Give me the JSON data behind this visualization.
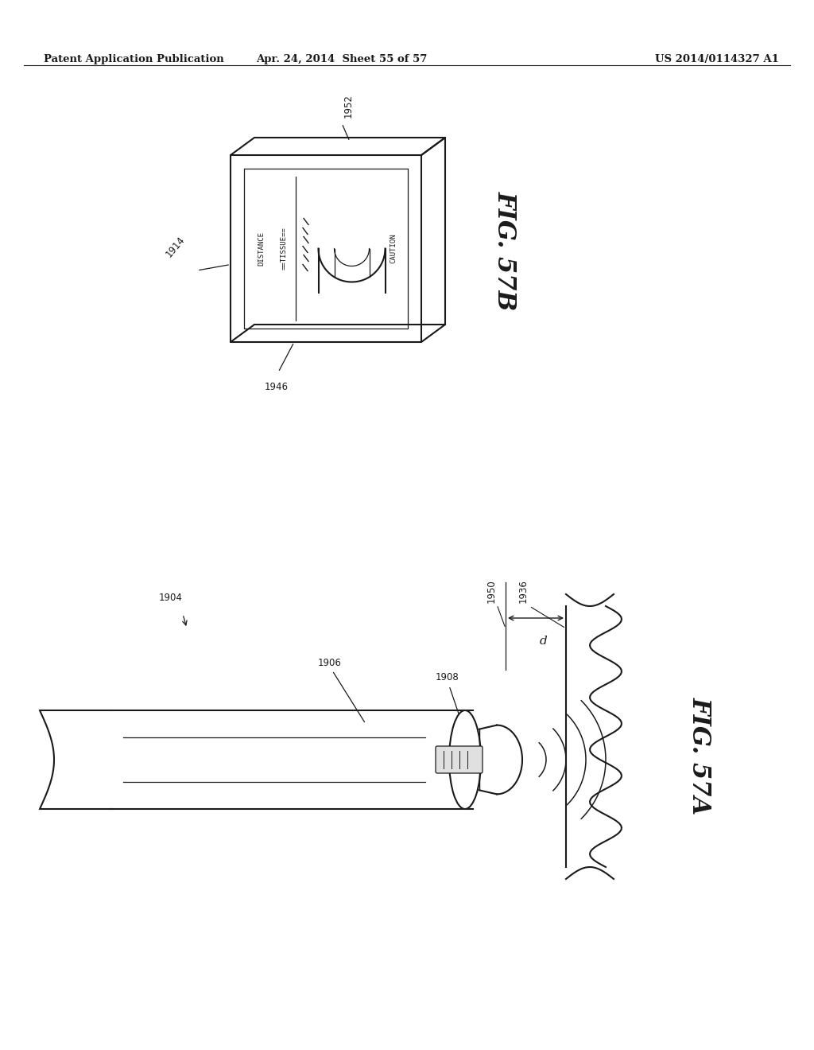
{
  "bg_color": "#ffffff",
  "line_color": "#1a1a1a",
  "header_left": "Patent Application Publication",
  "header_mid": "Apr. 24, 2014  Sheet 55 of 57",
  "header_right": "US 2014/0114327 A1",
  "fig57b_label": "FIG. 57B",
  "fig57a_label": "FIG. 57A",
  "fig_width": 10.24,
  "fig_height": 13.2,
  "dpi": 100
}
